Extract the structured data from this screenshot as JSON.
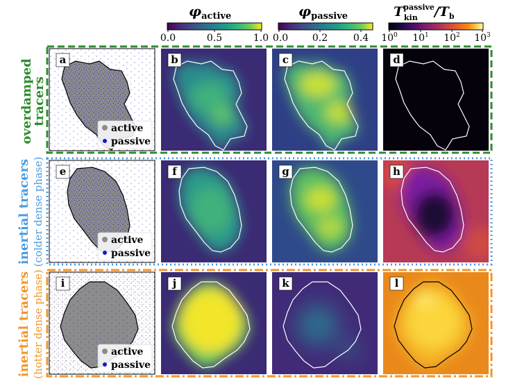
{
  "colorbars": [
    {
      "title_main": "φ",
      "title_sub": "active",
      "ticks": [
        "0.0",
        "0.5",
        "1.0"
      ],
      "colormap": "viridis"
    },
    {
      "title_main": "φ",
      "title_sub": "passive",
      "ticks": [
        "0.0",
        "0.2",
        "0.4"
      ],
      "colormap": "viridis"
    },
    {
      "title_main": "T",
      "title_sub": "kin",
      "title_sup": "passive",
      "title_tail_main": "/T",
      "title_tail_sub": "b",
      "ticks": [
        {
          "base": "10",
          "exp": "0"
        },
        {
          "base": "10",
          "exp": "1"
        },
        {
          "base": "10",
          "exp": "2"
        },
        {
          "base": "10",
          "exp": "3"
        }
      ],
      "colormap": "inferno"
    }
  ],
  "rows": [
    {
      "label_main": "overdamped",
      "label_sub": "tracers",
      "label_paren": "",
      "color": "#2e8b2e",
      "border_style": "dashed",
      "panels": [
        "a",
        "b",
        "c",
        "d"
      ],
      "legend": [
        "active",
        "passive"
      ]
    },
    {
      "label_main": "inertial tracers",
      "label_sub": "",
      "label_paren": "(colder dense phase)",
      "color": "#4a9be0",
      "border_style": "dotted",
      "panels": [
        "e",
        "f",
        "g",
        "h"
      ],
      "legend": [
        "active",
        "passive"
      ]
    },
    {
      "label_main": "inertial tracers",
      "label_sub": "",
      "label_paren": "(hotter dense phase)",
      "color": "#f0962a",
      "border_style": "dashdot",
      "panels": [
        "i",
        "j",
        "k",
        "l"
      ],
      "legend": [
        "active",
        "passive"
      ]
    }
  ],
  "colors": {
    "active_particles": "#8c8c8c",
    "passive_particles": "#1414d2",
    "contour_dark": "#ffffff",
    "contour_light": "#000000"
  }
}
